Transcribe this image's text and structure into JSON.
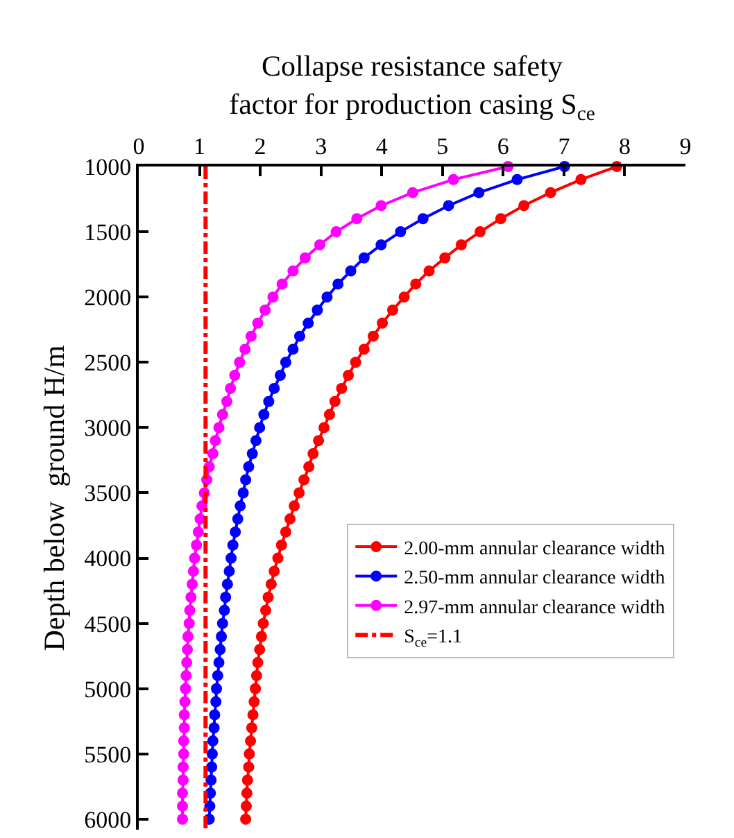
{
  "chart_data": {
    "type": "line",
    "xlabel": "Collapse resistance safety\nfactor for production casing S$_{ce}$",
    "ylabel": "Depth below  ground H/m",
    "xlim": [
      0,
      9
    ],
    "xticks": [
      0,
      1,
      2,
      3,
      4,
      5,
      6,
      7,
      8,
      9
    ],
    "ylim": [
      6080,
      1000
    ],
    "yticks": [
      1000,
      1500,
      2000,
      2500,
      3000,
      3500,
      4000,
      4500,
      5000,
      5500,
      6000
    ],
    "marker": "circle",
    "line_style": "solid",
    "legend": "right",
    "series": [
      {
        "name": "2.00-mm annular clearance width",
        "color": "#ff0000",
        "x": [
          7.87,
          7.28,
          6.78,
          6.34,
          5.96,
          5.62,
          5.31,
          5.04,
          4.78,
          4.56,
          4.37,
          4.18,
          4.01,
          3.86,
          3.71,
          3.57,
          3.45,
          3.34,
          3.23,
          3.14,
          3.05,
          2.96,
          2.87,
          2.8,
          2.72,
          2.64,
          2.56,
          2.49,
          2.42,
          2.35,
          2.29,
          2.23,
          2.18,
          2.13,
          2.09,
          2.05,
          2.02,
          1.99,
          1.96,
          1.94,
          1.92,
          1.9,
          1.88,
          1.86,
          1.84,
          1.82,
          1.81,
          1.79,
          1.78,
          1.77,
          1.76
        ],
        "values": [
          1000,
          1100,
          1200,
          1300,
          1400,
          1500,
          1600,
          1700,
          1800,
          1900,
          2000,
          2100,
          2200,
          2300,
          2400,
          2500,
          2600,
          2700,
          2800,
          2900,
          3000,
          3100,
          3200,
          3300,
          3400,
          3500,
          3600,
          3700,
          3800,
          3900,
          4000,
          4100,
          4200,
          4300,
          4400,
          4500,
          4600,
          4700,
          4800,
          4900,
          5000,
          5100,
          5200,
          5300,
          5400,
          5500,
          5600,
          5700,
          5800,
          5900,
          6000
        ]
      },
      {
        "name": "2.50-mm annular clearance width",
        "color": "#0000ff",
        "x": [
          7.01,
          6.23,
          5.6,
          5.1,
          4.68,
          4.31,
          3.99,
          3.71,
          3.49,
          3.28,
          3.1,
          2.94,
          2.79,
          2.65,
          2.54,
          2.42,
          2.33,
          2.23,
          2.14,
          2.06,
          1.99,
          1.93,
          1.87,
          1.81,
          1.76,
          1.72,
          1.67,
          1.63,
          1.59,
          1.55,
          1.52,
          1.49,
          1.46,
          1.43,
          1.41,
          1.38,
          1.36,
          1.34,
          1.32,
          1.3,
          1.28,
          1.27,
          1.25,
          1.24,
          1.22,
          1.21,
          1.2,
          1.19,
          1.18,
          1.17,
          1.16
        ],
        "values": [
          1000,
          1100,
          1200,
          1300,
          1400,
          1500,
          1600,
          1700,
          1800,
          1900,
          2000,
          2100,
          2200,
          2300,
          2400,
          2500,
          2600,
          2700,
          2800,
          2900,
          3000,
          3100,
          3200,
          3300,
          3400,
          3500,
          3600,
          3700,
          3800,
          3900,
          4000,
          4100,
          4200,
          4300,
          4400,
          4500,
          4600,
          4700,
          4800,
          4900,
          5000,
          5100,
          5200,
          5300,
          5400,
          5500,
          5600,
          5700,
          5800,
          5900,
          6000
        ]
      },
      {
        "name": "2.97-mm annular clearance width",
        "color": "#ff00ff",
        "x": [
          6.08,
          5.18,
          4.51,
          3.99,
          3.59,
          3.25,
          2.98,
          2.74,
          2.54,
          2.36,
          2.21,
          2.08,
          1.96,
          1.85,
          1.75,
          1.66,
          1.58,
          1.51,
          1.45,
          1.38,
          1.32,
          1.26,
          1.22,
          1.16,
          1.12,
          1.08,
          1.04,
          1.01,
          0.98,
          0.95,
          0.92,
          0.9,
          0.88,
          0.86,
          0.84,
          0.83,
          0.81,
          0.8,
          0.79,
          0.78,
          0.77,
          0.76,
          0.75,
          0.75,
          0.74,
          0.74,
          0.73,
          0.73,
          0.72,
          0.72,
          0.72
        ],
        "values": [
          1000,
          1100,
          1200,
          1300,
          1400,
          1500,
          1600,
          1700,
          1800,
          1900,
          2000,
          2100,
          2200,
          2300,
          2400,
          2500,
          2600,
          2700,
          2800,
          2900,
          3000,
          3100,
          3200,
          3300,
          3400,
          3500,
          3600,
          3700,
          3800,
          3900,
          4000,
          4100,
          4200,
          4300,
          4400,
          4500,
          4600,
          4700,
          4800,
          4900,
          5000,
          5100,
          5200,
          5300,
          5400,
          5500,
          5600,
          5700,
          5800,
          5900,
          6000
        ]
      },
      {
        "name": "S$_{ce}$=1.1",
        "color": "#ff0000",
        "type": "line",
        "marker": "none",
        "line_style": "dashdot",
        "x": [
          1.1,
          1.1
        ],
        "values": [
          1000,
          6080
        ]
      }
    ]
  }
}
